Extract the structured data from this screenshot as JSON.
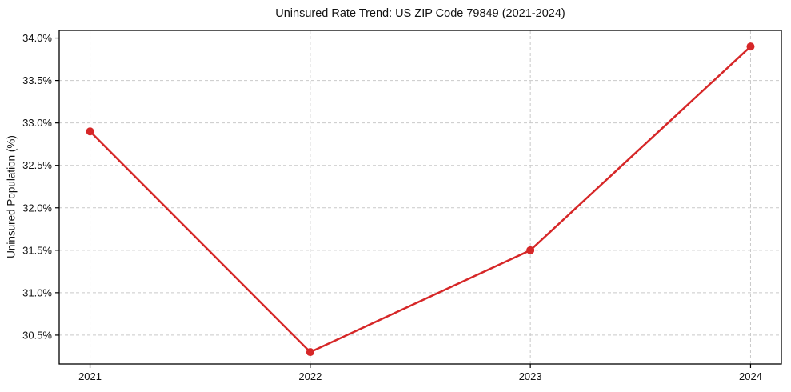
{
  "chart_data": {
    "type": "line",
    "title": "Uninsured Rate Trend: US ZIP Code 79849 (2021-2024)",
    "xlabel": "",
    "ylabel": "Uninsured Population (%)",
    "x": [
      2021,
      2022,
      2023,
      2024
    ],
    "xtick_labels": [
      "2021",
      "2022",
      "2023",
      "2024"
    ],
    "series": [
      {
        "name": "uninsured-rate",
        "values": [
          32.9,
          30.3,
          31.5,
          33.9
        ]
      }
    ],
    "yticks": [
      30.5,
      31.0,
      31.5,
      32.0,
      32.5,
      33.0,
      33.5,
      34.0
    ],
    "ytick_labels": [
      "30.5%",
      "31.0%",
      "31.5%",
      "32.0%",
      "32.5%",
      "33.0%",
      "33.5%",
      "34.0%"
    ],
    "xlim": [
      2020.86,
      2024.14
    ],
    "ylim": [
      30.16,
      34.09
    ],
    "grid": true,
    "legend_position": "none",
    "colors": {
      "line": "#d62728",
      "marker": "#d62728",
      "grid": "#c9c9c9",
      "axis_border": "#000000",
      "background": "#ffffff",
      "text": "#111111"
    }
  }
}
